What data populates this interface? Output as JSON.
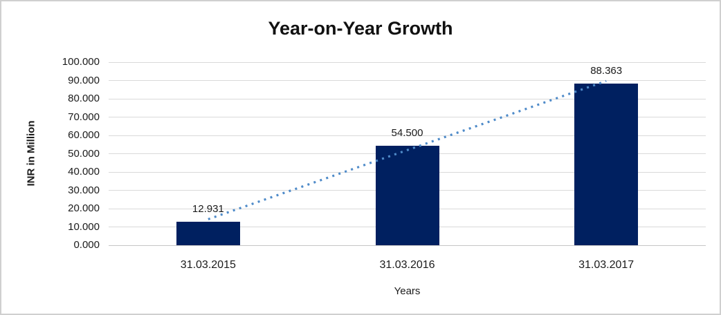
{
  "chart_data": {
    "type": "bar",
    "title": "Year-on-Year Growth",
    "xlabel": "Years",
    "ylabel": "INR in Million",
    "categories": [
      "31.03.2015",
      "31.03.2016",
      "31.03.2017"
    ],
    "values": [
      12.931,
      54.5,
      88.363
    ],
    "data_labels": [
      "12.931",
      "54.500",
      "88.363"
    ],
    "ylim": [
      0,
      100
    ],
    "ytick_step": 10,
    "ytick_labels": [
      "0.000",
      "10.000",
      "20.000",
      "30.000",
      "40.000",
      "50.000",
      "60.000",
      "70.000",
      "80.000",
      "90.000",
      "100.000"
    ],
    "grid": true,
    "legend_position": "none",
    "bar_color": "#002060",
    "gridline_color": "#d9d9d9",
    "axis_line_color": "#c6c6c6",
    "text_color": "#1a1a1a",
    "trendline": {
      "type": "linear",
      "style": "dotted",
      "color": "#4f8bc9",
      "endpoint_values": [
        14.2,
        89.7
      ]
    }
  }
}
